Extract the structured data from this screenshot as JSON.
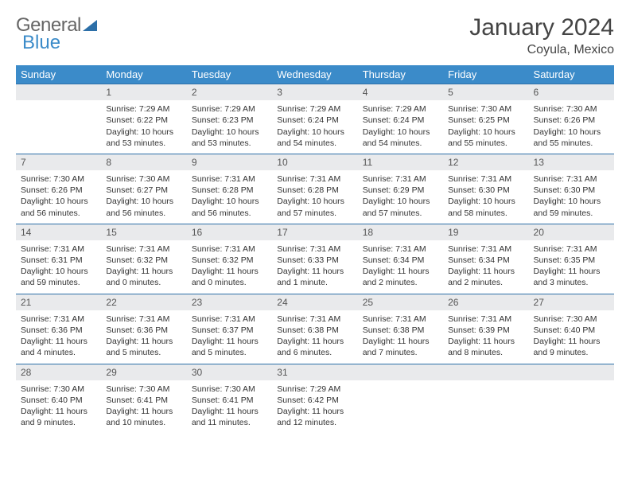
{
  "brand": {
    "part1": "General",
    "part2": "Blue"
  },
  "title": "January 2024",
  "location": "Coyula, Mexico",
  "colors": {
    "header_bg": "#3b8bc9",
    "rule": "#2c6fa8",
    "daynum_bg": "#e9eaec",
    "text": "#333333",
    "background": "#ffffff"
  },
  "dayHeaders": [
    "Sunday",
    "Monday",
    "Tuesday",
    "Wednesday",
    "Thursday",
    "Friday",
    "Saturday"
  ],
  "weeks": [
    [
      {
        "num": "",
        "lines": []
      },
      {
        "num": "1",
        "lines": [
          "Sunrise: 7:29 AM",
          "Sunset: 6:22 PM",
          "Daylight: 10 hours and 53 minutes."
        ]
      },
      {
        "num": "2",
        "lines": [
          "Sunrise: 7:29 AM",
          "Sunset: 6:23 PM",
          "Daylight: 10 hours and 53 minutes."
        ]
      },
      {
        "num": "3",
        "lines": [
          "Sunrise: 7:29 AM",
          "Sunset: 6:24 PM",
          "Daylight: 10 hours and 54 minutes."
        ]
      },
      {
        "num": "4",
        "lines": [
          "Sunrise: 7:29 AM",
          "Sunset: 6:24 PM",
          "Daylight: 10 hours and 54 minutes."
        ]
      },
      {
        "num": "5",
        "lines": [
          "Sunrise: 7:30 AM",
          "Sunset: 6:25 PM",
          "Daylight: 10 hours and 55 minutes."
        ]
      },
      {
        "num": "6",
        "lines": [
          "Sunrise: 7:30 AM",
          "Sunset: 6:26 PM",
          "Daylight: 10 hours and 55 minutes."
        ]
      }
    ],
    [
      {
        "num": "7",
        "lines": [
          "Sunrise: 7:30 AM",
          "Sunset: 6:26 PM",
          "Daylight: 10 hours and 56 minutes."
        ]
      },
      {
        "num": "8",
        "lines": [
          "Sunrise: 7:30 AM",
          "Sunset: 6:27 PM",
          "Daylight: 10 hours and 56 minutes."
        ]
      },
      {
        "num": "9",
        "lines": [
          "Sunrise: 7:31 AM",
          "Sunset: 6:28 PM",
          "Daylight: 10 hours and 56 minutes."
        ]
      },
      {
        "num": "10",
        "lines": [
          "Sunrise: 7:31 AM",
          "Sunset: 6:28 PM",
          "Daylight: 10 hours and 57 minutes."
        ]
      },
      {
        "num": "11",
        "lines": [
          "Sunrise: 7:31 AM",
          "Sunset: 6:29 PM",
          "Daylight: 10 hours and 57 minutes."
        ]
      },
      {
        "num": "12",
        "lines": [
          "Sunrise: 7:31 AM",
          "Sunset: 6:30 PM",
          "Daylight: 10 hours and 58 minutes."
        ]
      },
      {
        "num": "13",
        "lines": [
          "Sunrise: 7:31 AM",
          "Sunset: 6:30 PM",
          "Daylight: 10 hours and 59 minutes."
        ]
      }
    ],
    [
      {
        "num": "14",
        "lines": [
          "Sunrise: 7:31 AM",
          "Sunset: 6:31 PM",
          "Daylight: 10 hours and 59 minutes."
        ]
      },
      {
        "num": "15",
        "lines": [
          "Sunrise: 7:31 AM",
          "Sunset: 6:32 PM",
          "Daylight: 11 hours and 0 minutes."
        ]
      },
      {
        "num": "16",
        "lines": [
          "Sunrise: 7:31 AM",
          "Sunset: 6:32 PM",
          "Daylight: 11 hours and 0 minutes."
        ]
      },
      {
        "num": "17",
        "lines": [
          "Sunrise: 7:31 AM",
          "Sunset: 6:33 PM",
          "Daylight: 11 hours and 1 minute."
        ]
      },
      {
        "num": "18",
        "lines": [
          "Sunrise: 7:31 AM",
          "Sunset: 6:34 PM",
          "Daylight: 11 hours and 2 minutes."
        ]
      },
      {
        "num": "19",
        "lines": [
          "Sunrise: 7:31 AM",
          "Sunset: 6:34 PM",
          "Daylight: 11 hours and 2 minutes."
        ]
      },
      {
        "num": "20",
        "lines": [
          "Sunrise: 7:31 AM",
          "Sunset: 6:35 PM",
          "Daylight: 11 hours and 3 minutes."
        ]
      }
    ],
    [
      {
        "num": "21",
        "lines": [
          "Sunrise: 7:31 AM",
          "Sunset: 6:36 PM",
          "Daylight: 11 hours and 4 minutes."
        ]
      },
      {
        "num": "22",
        "lines": [
          "Sunrise: 7:31 AM",
          "Sunset: 6:36 PM",
          "Daylight: 11 hours and 5 minutes."
        ]
      },
      {
        "num": "23",
        "lines": [
          "Sunrise: 7:31 AM",
          "Sunset: 6:37 PM",
          "Daylight: 11 hours and 5 minutes."
        ]
      },
      {
        "num": "24",
        "lines": [
          "Sunrise: 7:31 AM",
          "Sunset: 6:38 PM",
          "Daylight: 11 hours and 6 minutes."
        ]
      },
      {
        "num": "25",
        "lines": [
          "Sunrise: 7:31 AM",
          "Sunset: 6:38 PM",
          "Daylight: 11 hours and 7 minutes."
        ]
      },
      {
        "num": "26",
        "lines": [
          "Sunrise: 7:31 AM",
          "Sunset: 6:39 PM",
          "Daylight: 11 hours and 8 minutes."
        ]
      },
      {
        "num": "27",
        "lines": [
          "Sunrise: 7:30 AM",
          "Sunset: 6:40 PM",
          "Daylight: 11 hours and 9 minutes."
        ]
      }
    ],
    [
      {
        "num": "28",
        "lines": [
          "Sunrise: 7:30 AM",
          "Sunset: 6:40 PM",
          "Daylight: 11 hours and 9 minutes."
        ]
      },
      {
        "num": "29",
        "lines": [
          "Sunrise: 7:30 AM",
          "Sunset: 6:41 PM",
          "Daylight: 11 hours and 10 minutes."
        ]
      },
      {
        "num": "30",
        "lines": [
          "Sunrise: 7:30 AM",
          "Sunset: 6:41 PM",
          "Daylight: 11 hours and 11 minutes."
        ]
      },
      {
        "num": "31",
        "lines": [
          "Sunrise: 7:29 AM",
          "Sunset: 6:42 PM",
          "Daylight: 11 hours and 12 minutes."
        ]
      },
      {
        "num": "",
        "lines": []
      },
      {
        "num": "",
        "lines": []
      },
      {
        "num": "",
        "lines": []
      }
    ]
  ]
}
